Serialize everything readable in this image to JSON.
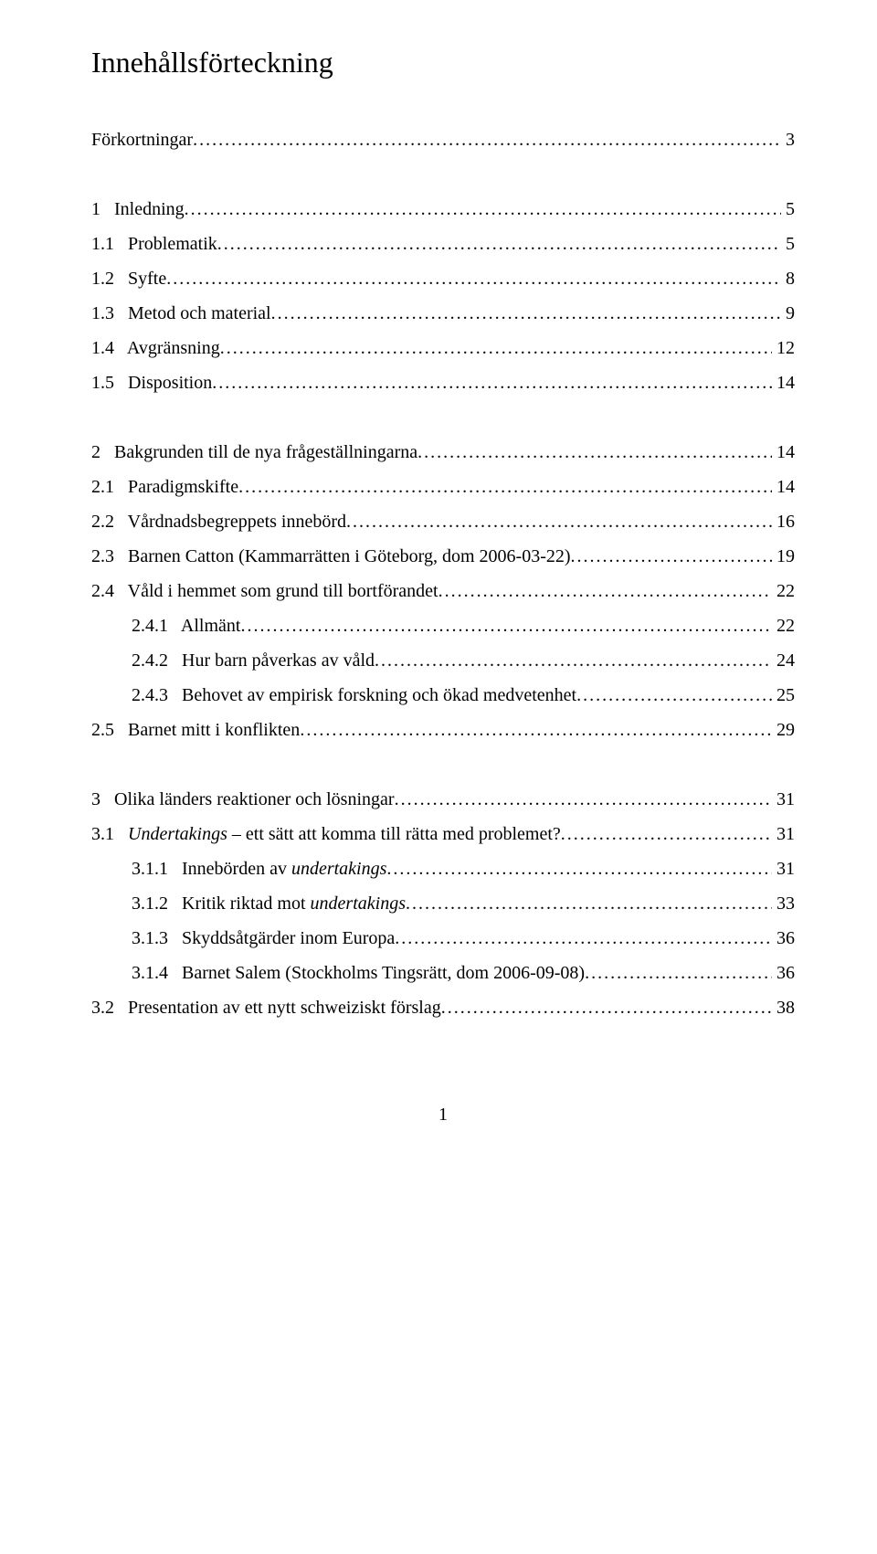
{
  "title": "Innehållsförteckning",
  "page_number": "1",
  "entries": [
    {
      "label": "Förkortningar",
      "page": "3",
      "indent": 0,
      "italic": false,
      "gap": true
    },
    {
      "label": "1   Inledning",
      "page": "5",
      "indent": 0,
      "italic": false,
      "gap": true
    },
    {
      "label": "1.1   Problematik",
      "page": "5",
      "indent": 1,
      "italic": false,
      "gap": false
    },
    {
      "label": "1.2   Syfte",
      "page": "8",
      "indent": 1,
      "italic": false,
      "gap": false
    },
    {
      "label": "1.3   Metod och material",
      "page": "9",
      "indent": 1,
      "italic": false,
      "gap": false
    },
    {
      "label": "1.4   Avgränsning",
      "page": "12",
      "indent": 1,
      "italic": false,
      "gap": false
    },
    {
      "label": "1.5   Disposition",
      "page": "14",
      "indent": 1,
      "italic": false,
      "gap": false
    },
    {
      "label": "2   Bakgrunden till de nya frågeställningarna",
      "page": "14",
      "indent": 0,
      "italic": false,
      "gap": true
    },
    {
      "label": "2.1   Paradigmskifte",
      "page": "14",
      "indent": 1,
      "italic": false,
      "gap": false
    },
    {
      "label": "2.2   Vårdnadsbegreppets innebörd",
      "page": "16",
      "indent": 1,
      "italic": false,
      "gap": false
    },
    {
      "label": "2.3   Barnen Catton (Kammarrätten i Göteborg, dom 2006-03-22)",
      "page": "19",
      "indent": 1,
      "italic": false,
      "gap": false
    },
    {
      "label": "2.4   Våld i hemmet som grund till bortförandet",
      "page": "22",
      "indent": 1,
      "italic": false,
      "gap": false
    },
    {
      "label": "2.4.1   Allmänt",
      "page": "22",
      "indent": 2,
      "italic": false,
      "gap": false
    },
    {
      "label": "2.4.2   Hur barn påverkas av våld",
      "page": "24",
      "indent": 2,
      "italic": false,
      "gap": false
    },
    {
      "label": "2.4.3   Behovet av empirisk forskning och ökad medvetenhet",
      "page": "25",
      "indent": 2,
      "italic": false,
      "gap": false
    },
    {
      "label": "2.5   Barnet mitt i konflikten",
      "page": "29",
      "indent": 1,
      "italic": false,
      "gap": false
    },
    {
      "label": "3   Olika länders reaktioner och lösningar",
      "page": "31",
      "indent": 0,
      "italic": false,
      "gap": true
    },
    {
      "label_parts": [
        {
          "text": "3.1   ",
          "italic": false
        },
        {
          "text": "Undertakings",
          "italic": true
        },
        {
          "text": " – ett sätt att komma till rätta med problemet?",
          "italic": false
        }
      ],
      "page": "31",
      "indent": 1,
      "gap": false
    },
    {
      "label_parts": [
        {
          "text": "3.1.1   Innebörden av ",
          "italic": false
        },
        {
          "text": "undertakings",
          "italic": true
        }
      ],
      "page": "31",
      "indent": 2,
      "gap": false
    },
    {
      "label_parts": [
        {
          "text": "3.1.2   Kritik riktad mot ",
          "italic": false
        },
        {
          "text": "undertakings",
          "italic": true
        }
      ],
      "page": "33",
      "indent": 2,
      "gap": false
    },
    {
      "label": "3.1.3   Skyddsåtgärder inom Europa",
      "page": "36",
      "indent": 2,
      "italic": false,
      "gap": false
    },
    {
      "label": "3.1.4   Barnet Salem (Stockholms Tingsrätt, dom 2006-09-08)",
      "page": "36",
      "indent": 2,
      "italic": false,
      "gap": false
    },
    {
      "label": "3.2   Presentation av ett nytt schweiziskt förslag",
      "page": "38",
      "indent": 1,
      "italic": false,
      "gap": false
    }
  ]
}
